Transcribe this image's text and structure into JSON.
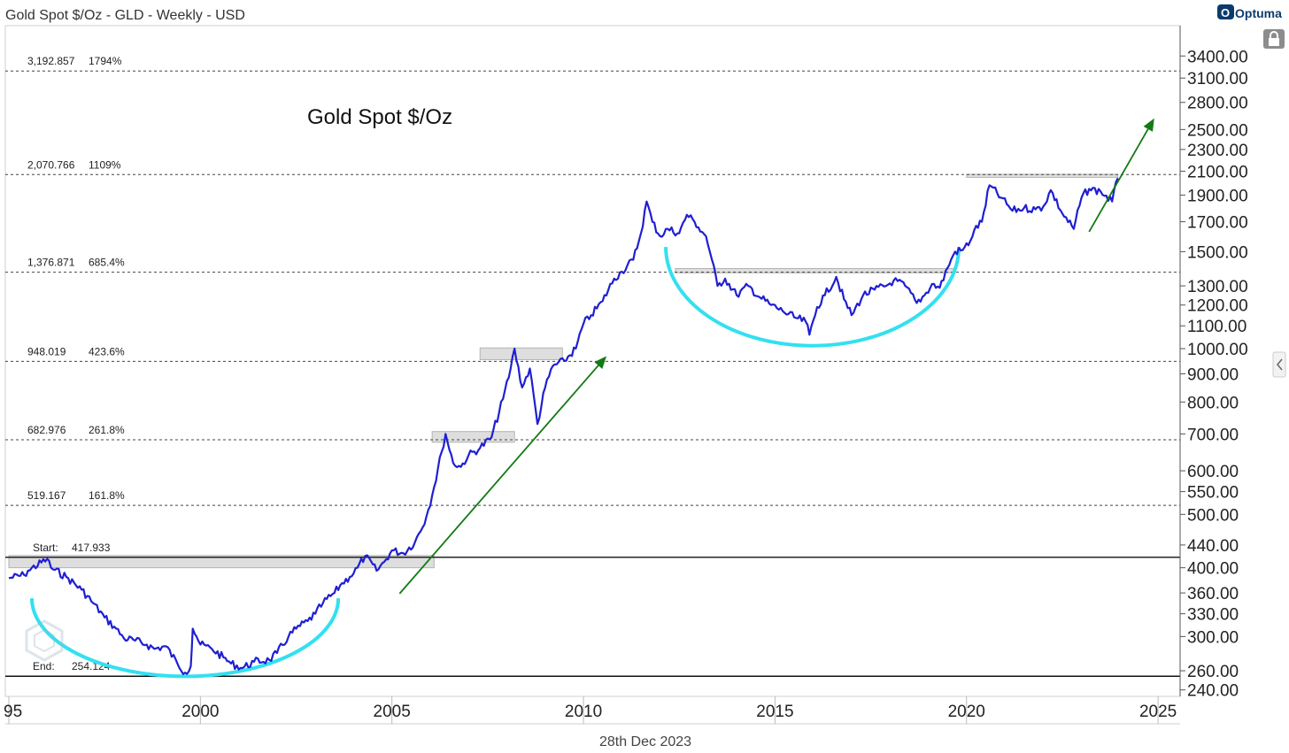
{
  "header": {
    "title": "Gold Spot $/Oz - GLD - Weekly - USD",
    "brand": "Optuma"
  },
  "footer": {
    "date": "28th Dec 2023"
  },
  "colors": {
    "price": "#1f1fd2",
    "arc": "#33e0f0",
    "arrow": "#137a13",
    "zone_fill": "#d9d9d9",
    "zone_stroke": "#a6a6a6"
  },
  "chart_data": {
    "type": "line",
    "title": "Gold Spot $/Oz",
    "frequency": "Weekly",
    "currency": "USD",
    "y_scale": "log",
    "xlim": [
      1995,
      2026
    ],
    "ylim": [
      240,
      3600
    ],
    "x_ticks": [
      "95",
      "2000",
      "2005",
      "2010",
      "2015",
      "2020",
      "2025"
    ],
    "x_tick_values": [
      1995,
      2000,
      2005,
      2010,
      2015,
      2020,
      2025
    ],
    "y_ticks": [
      "3400.00",
      "3100.00",
      "2800.00",
      "2500.00",
      "2300.00",
      "2100.00",
      "1900.00",
      "1700.00",
      "1500.00",
      "1300.00",
      "1200.00",
      "1100.00",
      "1000.00",
      "900.00",
      "800.00",
      "700.00",
      "600.00",
      "550.00",
      "500.00",
      "440.00",
      "400.00",
      "360.00",
      "330.00",
      "300.00",
      "260.00",
      "240.00"
    ],
    "y_tick_values": [
      3400,
      3100,
      2800,
      2500,
      2300,
      2100,
      1900,
      1700,
      1500,
      1300,
      1200,
      1100,
      1000,
      900,
      800,
      700,
      600,
      550,
      500,
      440,
      400,
      360,
      330,
      300,
      260,
      240
    ],
    "fib_levels": [
      {
        "price": 3192.857,
        "price_label": "3,192.857",
        "pct_label": "1794%",
        "style": "dotted"
      },
      {
        "price": 2070.766,
        "price_label": "2,070.766",
        "pct_label": "1109%",
        "style": "dotted"
      },
      {
        "price": 1376.871,
        "price_label": "1,376.871",
        "pct_label": "685.4%",
        "style": "dotted"
      },
      {
        "price": 948.019,
        "price_label": "948.019",
        "pct_label": "423.6%",
        "style": "dotted"
      },
      {
        "price": 682.976,
        "price_label": "682.976",
        "pct_label": "261.8%",
        "style": "dotted"
      },
      {
        "price": 519.167,
        "price_label": "519.167",
        "pct_label": "161.8%",
        "style": "dotted"
      },
      {
        "price": 417.933,
        "price_label": "417.933",
        "pct_label": "Start:",
        "style": "solid"
      },
      {
        "price": 254.124,
        "price_label": "254.124",
        "pct_label": "End:",
        "style": "solid"
      }
    ],
    "series": [
      {
        "x": [
          1995.0,
          1995.4,
          1995.5,
          1996.0,
          1996.1,
          1996.5,
          1996.9,
          1997.2,
          1997.5,
          1997.8,
          1998.0,
          1998.3,
          1998.6,
          1998.8,
          1999.1,
          1999.4,
          1999.6,
          1999.75,
          1999.8,
          1999.9,
          2000.0,
          2000.3,
          2000.6,
          2000.8,
          2001.1,
          2001.4,
          2001.8,
          2002.0,
          2002.3,
          2002.5,
          2002.8,
          2003.0,
          2003.2,
          2003.5,
          2003.7,
          2003.9,
          2004.1,
          2004.3,
          2004.6,
          2004.8,
          2005.0,
          2005.3,
          2005.6,
          2005.9,
          2006.1,
          2006.3,
          2006.4,
          2006.6,
          2006.8,
          2007.0,
          2007.3,
          2007.6,
          2007.9,
          2008.1,
          2008.2,
          2008.4,
          2008.6,
          2008.8,
          2009.0,
          2009.2,
          2009.5,
          2009.8,
          2010.0,
          2010.2,
          2010.5,
          2010.8,
          2011.0,
          2011.3,
          2011.5,
          2011.65,
          2011.8,
          2012.0,
          2012.2,
          2012.5,
          2012.7,
          2012.9,
          2013.0,
          2013.2,
          2013.3,
          2013.5,
          2013.7,
          2014.0,
          2014.3,
          2014.6,
          2014.9,
          2015.2,
          2015.5,
          2015.8,
          2015.9,
          2016.1,
          2016.3,
          2016.6,
          2016.8,
          2017.0,
          2017.3,
          2017.6,
          2017.9,
          2018.1,
          2018.4,
          2018.7,
          2018.9,
          2019.1,
          2019.3,
          2019.5,
          2019.7,
          2019.9,
          2020.1,
          2020.2,
          2020.4,
          2020.6,
          2020.9,
          2021.2,
          2021.5,
          2021.8,
          2022.0,
          2022.2,
          2022.5,
          2022.8,
          2023.0,
          2023.2,
          2023.5,
          2023.8,
          2023.95
        ],
        "values": [
          383,
          388,
          395,
          415,
          400,
          385,
          365,
          345,
          325,
          310,
          298,
          295,
          290,
          285,
          288,
          268,
          258,
          265,
          310,
          300,
          290,
          285,
          275,
          268,
          263,
          270,
          272,
          280,
          300,
          310,
          320,
          330,
          345,
          360,
          375,
          385,
          400,
          420,
          395,
          410,
          430,
          425,
          445,
          495,
          560,
          650,
          700,
          620,
          610,
          640,
          660,
          690,
          810,
          920,
          1000,
          850,
          920,
          730,
          850,
          930,
          950,
          1000,
          1110,
          1150,
          1220,
          1340,
          1380,
          1450,
          1620,
          1850,
          1700,
          1600,
          1650,
          1620,
          1750,
          1700,
          1660,
          1600,
          1500,
          1300,
          1340,
          1250,
          1300,
          1240,
          1200,
          1170,
          1140,
          1120,
          1060,
          1190,
          1250,
          1350,
          1230,
          1150,
          1250,
          1280,
          1300,
          1330,
          1300,
          1210,
          1250,
          1310,
          1290,
          1400,
          1500,
          1510,
          1570,
          1640,
          1700,
          1980,
          1880,
          1780,
          1800,
          1790,
          1810,
          1940,
          1760,
          1650,
          1880,
          1950,
          1930,
          1850,
          2040
        ]
      }
    ],
    "annotations": [
      {
        "type": "arrow",
        "from": [
          2005.2,
          359
        ],
        "to": [
          2010.6,
          969
        ],
        "color": "arrow"
      },
      {
        "type": "arrow",
        "from": [
          2023.2,
          1630
        ],
        "to": [
          2024.9,
          2620
        ],
        "color": "arrow"
      },
      {
        "type": "arc",
        "x_range": [
          1995.6,
          2003.6
        ],
        "y_edge": 352,
        "y_bottom": 254,
        "color": "arc"
      },
      {
        "type": "arc",
        "x_range": [
          2012.15,
          2019.8
        ],
        "y_edge": 1530,
        "y_bottom": 1012,
        "color": "arc"
      },
      {
        "type": "zone",
        "x_range": [
          1995.0,
          2006.1
        ],
        "y_range": [
          400,
          421
        ]
      },
      {
        "type": "zone",
        "x_range": [
          2006.05,
          2008.2
        ],
        "y_range": [
          676,
          707
        ]
      },
      {
        "type": "zone",
        "x_range": [
          2007.3,
          2009.45
        ],
        "y_range": [
          955,
          1003
        ]
      },
      {
        "type": "zone",
        "x_range": [
          2012.4,
          2019.7
        ],
        "y_range": [
          1373,
          1398
        ]
      },
      {
        "type": "zone",
        "x_range": [
          2020.0,
          2023.95
        ],
        "y_range": [
          2047,
          2073
        ]
      }
    ]
  }
}
